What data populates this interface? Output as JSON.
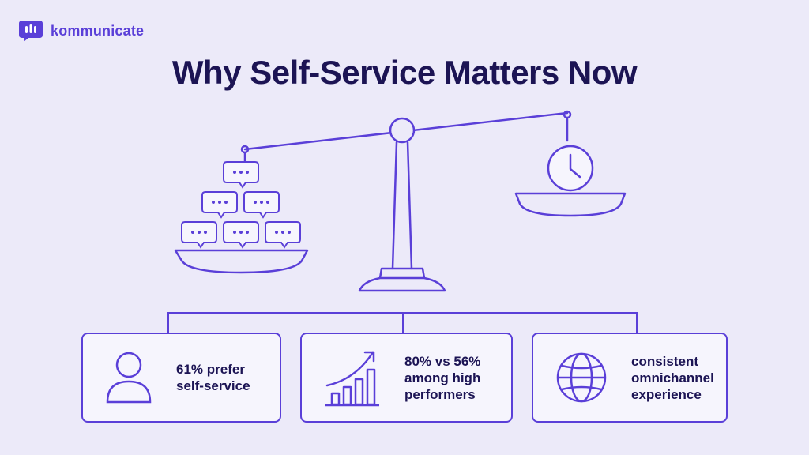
{
  "brand": {
    "logo_text": "kommunicate",
    "accent_color": "#5A3FD8",
    "text_color": "#1C1454",
    "background_color": "#ECEAF9"
  },
  "title": "Why Self-Service Matters Now",
  "scale": {
    "left_pan_icons": [
      "chat-bubble-icon",
      "chat-bubble-icon",
      "chat-bubble-icon",
      "chat-bubble-icon",
      "chat-bubble-icon",
      "chat-bubble-icon"
    ],
    "right_pan_icon": "clock-icon"
  },
  "cards": [
    {
      "icon": "user-icon",
      "lines": [
        "61% prefer",
        "self-service"
      ]
    },
    {
      "icon": "growth-chart-icon",
      "lines": [
        "80% vs 56%",
        "among high",
        "performers"
      ]
    },
    {
      "icon": "globe-icon",
      "lines": [
        "consistent",
        "omnichannel",
        "experience"
      ]
    }
  ]
}
